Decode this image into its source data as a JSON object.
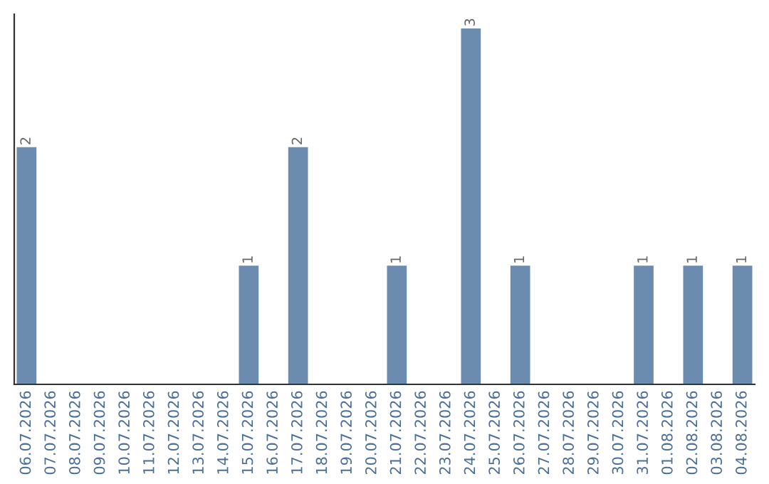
{
  "chart_data": {
    "type": "bar",
    "categories": [
      "06.07.2026",
      "07.07.2026",
      "08.07.2026",
      "09.07.2026",
      "10.07.2026",
      "11.07.2026",
      "12.07.2026",
      "13.07.2026",
      "14.07.2026",
      "15.07.2026",
      "16.07.2026",
      "17.07.2026",
      "18.07.2026",
      "19.07.2026",
      "20.07.2026",
      "21.07.2026",
      "22.07.2026",
      "23.07.2026",
      "24.07.2026",
      "25.07.2026",
      "26.07.2026",
      "27.07.2026",
      "28.07.2026",
      "29.07.2026",
      "30.07.2026",
      "31.07.2026",
      "01.08.2026",
      "02.08.2026",
      "03.08.2026",
      "04.08.2026"
    ],
    "values": [
      2,
      0,
      0,
      0,
      0,
      0,
      0,
      0,
      0,
      1,
      0,
      2,
      0,
      0,
      0,
      1,
      0,
      0,
      3,
      0,
      1,
      0,
      0,
      0,
      0,
      1,
      0,
      1,
      0,
      1
    ],
    "value_labels": [
      "2",
      null,
      null,
      null,
      null,
      null,
      null,
      null,
      null,
      "1",
      null,
      "2",
      null,
      null,
      null,
      "1",
      null,
      null,
      "3",
      null,
      "1",
      null,
      null,
      null,
      null,
      "1",
      null,
      "1",
      null,
      "1"
    ],
    "color": "#6b8cae",
    "tick_labels": "x",
    "grid": false,
    "legend": false
  }
}
